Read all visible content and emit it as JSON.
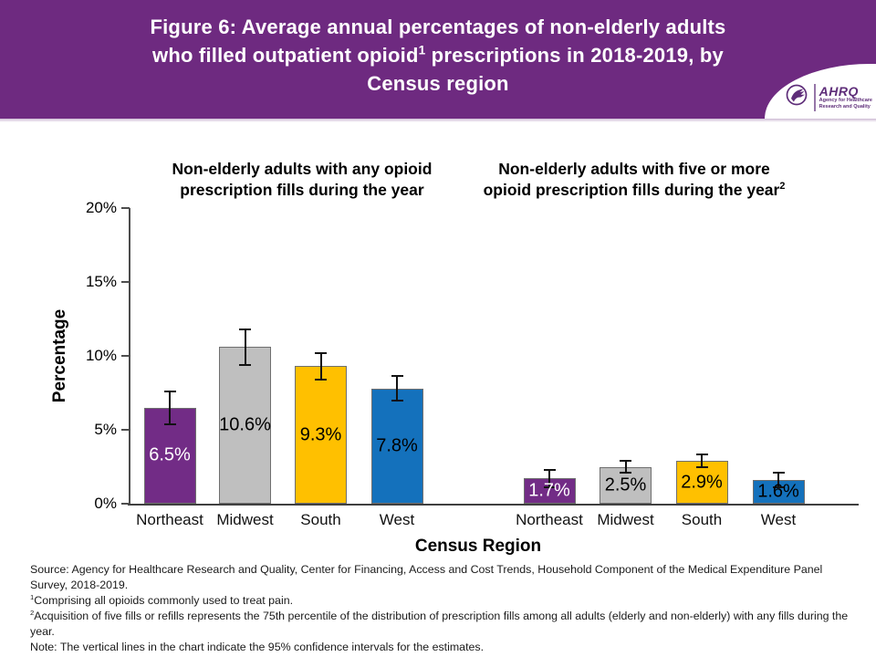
{
  "header": {
    "background_color": "#6E2A80",
    "title_lines": [
      {
        "text": "Figure 6: Average annual percentages of non-elderly adults"
      },
      {
        "pre": "who filled outpatient opioid",
        "sup": "1",
        "post": " prescriptions in 2018-2019, by"
      },
      {
        "text": "Census region"
      }
    ],
    "logo": {
      "org": "AHRQ",
      "tagline1": "Agency for Healthcare",
      "tagline2": "Research and Quality"
    }
  },
  "chart_data": {
    "type": "bar",
    "categories": [
      "Northeast",
      "Midwest",
      "South",
      "West"
    ],
    "xlabel": "Census Region",
    "ylabel": "Percentage",
    "ylim": [
      0,
      20
    ],
    "ytick_labels": [
      "0%",
      "5%",
      "10%",
      "15%",
      "20%"
    ],
    "bar_colors": [
      "#722C86",
      "#BFBFBF",
      "#FFC000",
      "#1471BC"
    ],
    "bar_label_colors": [
      "#FFFFFF",
      "#000000",
      "#000000",
      "#000000"
    ],
    "error_bar_meaning": "95% confidence intervals",
    "groups": [
      {
        "title_lines": [
          {
            "text": "Non-elderly adults with any opioid"
          },
          {
            "text": "prescription fills during the year"
          }
        ],
        "values": [
          6.5,
          10.6,
          9.3,
          7.8
        ],
        "labels": [
          "6.5%",
          "10.6%",
          "9.3%",
          "7.8%"
        ],
        "ci_halfwidth": [
          1.1,
          1.2,
          0.9,
          0.85
        ]
      },
      {
        "title_lines": [
          {
            "text": "Non-elderly adults with five or more"
          },
          {
            "text": "opioid prescription fills during the year",
            "sup": "2"
          }
        ],
        "values": [
          1.7,
          2.5,
          2.9,
          1.6
        ],
        "labels": [
          "1.7%",
          "2.5%",
          "2.9%",
          "1.6%"
        ],
        "ci_halfwidth": [
          0.6,
          0.4,
          0.45,
          0.5
        ]
      }
    ]
  },
  "footer": {
    "lines": [
      {
        "sup": "",
        "text": "Source: Agency for Healthcare Research and Quality, Center for Financing, Access and Cost Trends, Household Component of the Medical Expenditure Panel Survey, 2018-2019."
      },
      {
        "sup": "1",
        "text": "Comprising all opioids commonly used to treat pain."
      },
      {
        "sup": "2",
        "text": "Acquisition of five fills or refills represents the 75th percentile of the distribution of prescription fills among all adults (elderly and non-elderly) with any fills during the year."
      },
      {
        "sup": "",
        "text": "Note: The vertical lines in the chart indicate the 95% confidence intervals for the estimates."
      }
    ]
  }
}
